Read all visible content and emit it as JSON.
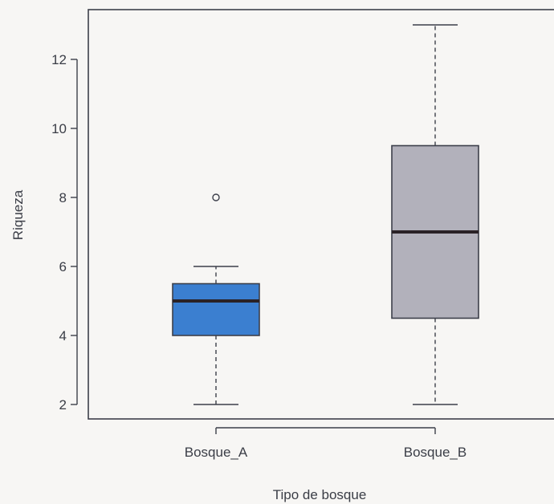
{
  "chart_data": {
    "type": "box",
    "xlabel": "Tipo de bosque",
    "ylabel": "Riqueza",
    "ylim": [
      1.6,
      13.6
    ],
    "yticks": [
      2,
      4,
      6,
      8,
      10,
      12
    ],
    "grid": false,
    "categories": [
      "Bosque_A",
      "Bosque_B"
    ],
    "boxes": [
      {
        "category": "Bosque_A",
        "min": 2,
        "q1": 4,
        "median": 5,
        "q3": 5.5,
        "max": 6,
        "outliers": [
          8
        ],
        "color": "#3b7fd0"
      },
      {
        "category": "Bosque_B",
        "min": 2,
        "q1": 4.5,
        "median": 7,
        "q3": 9.5,
        "max": 13,
        "outliers": [],
        "color": "#b2b1bb"
      }
    ]
  }
}
